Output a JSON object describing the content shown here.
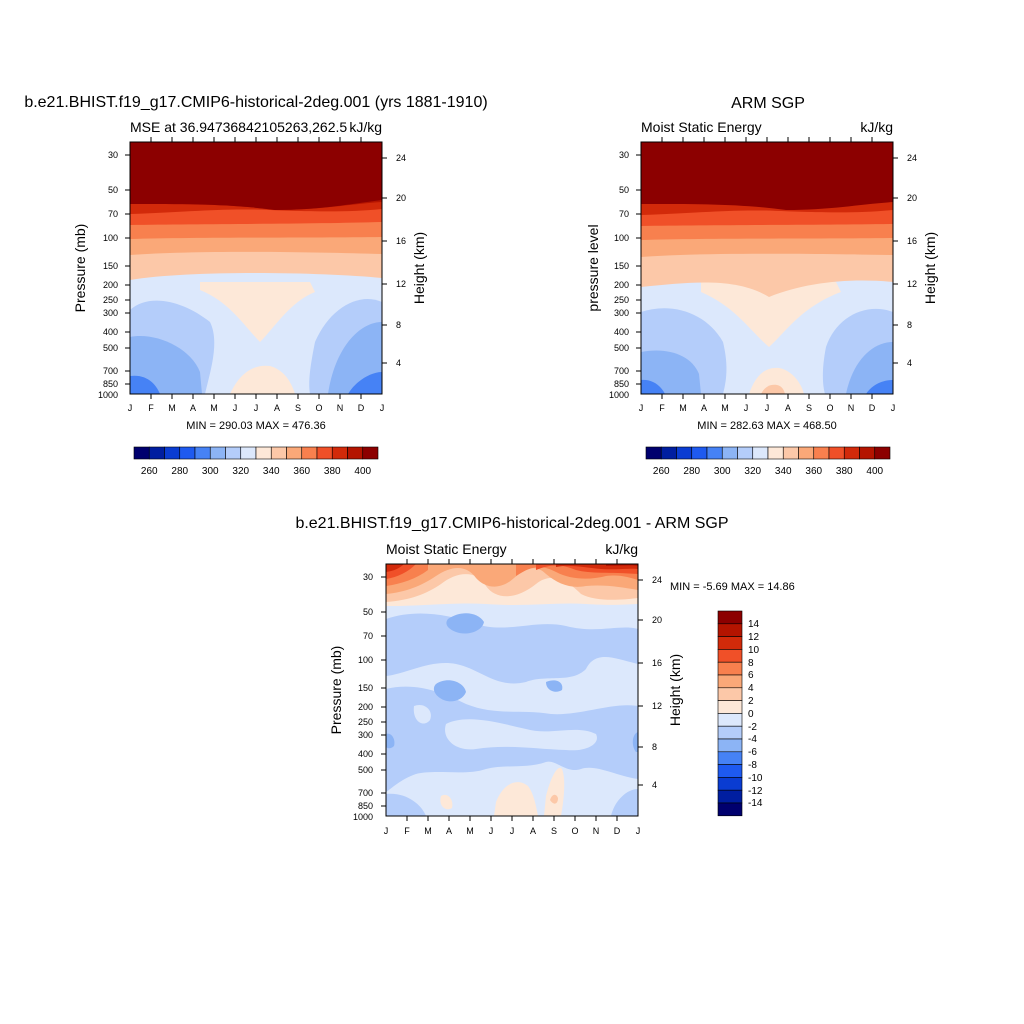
{
  "figure": {
    "colors": [
      "#00006e",
      "#001ea0",
      "#0a3cd2",
      "#1e5af0",
      "#4682f5",
      "#8cb4f5",
      "#b4cdfa",
      "#dce8fc",
      "#fde8d8",
      "#fcc8a8",
      "#faa878",
      "#f8804e",
      "#f05028",
      "#d22a0a",
      "#b41400",
      "#8c0000"
    ]
  },
  "chart_data": [
    {
      "type": "heatmap",
      "title": "b.e21.BHIST.f19_g17.CMIP6-historical-2deg.001 (yrs 1881-1910)",
      "left_string": "MSE at 36.94736842105263,262.5",
      "right_string": "kJ/kg",
      "ylabel": "Pressure (mb)",
      "ylabel_right": "Height (km)",
      "x_ticks": [
        "J",
        "F",
        "M",
        "A",
        "M",
        "J",
        "J",
        "A",
        "S",
        "O",
        "N",
        "D",
        "J"
      ],
      "y_ticks": [
        "30",
        "50",
        "70",
        "100",
        "150",
        "200",
        "250",
        "300",
        "400",
        "500",
        "700",
        "850",
        "1000"
      ],
      "y_ticks_right": [
        "24",
        "20",
        "16",
        "12",
        "8",
        "4"
      ],
      "ylim": [
        1000,
        20
      ],
      "minmax": "MIN = 290.03 MAX = 476.36",
      "colorbar": {
        "orientation": "horizontal",
        "levels": [
          250,
          260,
          270,
          280,
          290,
          300,
          310,
          320,
          330,
          340,
          350,
          360,
          370,
          380,
          390,
          400,
          410
        ],
        "labels": [
          "260",
          "280",
          "300",
          "320",
          "340",
          "360",
          "380",
          "400"
        ]
      }
    },
    {
      "type": "heatmap",
      "title": "ARM SGP",
      "left_string": "Moist Static Energy",
      "right_string": "kJ/kg",
      "ylabel": "pressure level",
      "ylabel_right": "Height (km)",
      "x_ticks": [
        "J",
        "F",
        "M",
        "A",
        "M",
        "J",
        "J",
        "A",
        "S",
        "O",
        "N",
        "D",
        "J"
      ],
      "y_ticks": [
        "30",
        "50",
        "70",
        "100",
        "150",
        "200",
        "250",
        "300",
        "400",
        "500",
        "700",
        "850",
        "1000"
      ],
      "y_ticks_right": [
        "24",
        "20",
        "16",
        "12",
        "8",
        "4"
      ],
      "ylim": [
        1000,
        20
      ],
      "minmax": "MIN = 282.63 MAX = 468.50",
      "colorbar": {
        "orientation": "horizontal",
        "levels": [
          250,
          260,
          270,
          280,
          290,
          300,
          310,
          320,
          330,
          340,
          350,
          360,
          370,
          380,
          390,
          400,
          410
        ],
        "labels": [
          "260",
          "280",
          "300",
          "320",
          "340",
          "360",
          "380",
          "400"
        ]
      }
    },
    {
      "type": "heatmap",
      "title": "b.e21.BHIST.f19_g17.CMIP6-historical-2deg.001 - ARM SGP",
      "left_string": "Moist Static Energy",
      "right_string": "kJ/kg",
      "ylabel": "Pressure (mb)",
      "ylabel_right": "Height (km)",
      "x_ticks": [
        "J",
        "F",
        "M",
        "A",
        "M",
        "J",
        "J",
        "A",
        "S",
        "O",
        "N",
        "D",
        "J"
      ],
      "y_ticks": [
        "30",
        "50",
        "70",
        "100",
        "150",
        "200",
        "250",
        "300",
        "400",
        "500",
        "700",
        "850",
        "1000"
      ],
      "y_ticks_right": [
        "24",
        "20",
        "16",
        "12",
        "8",
        "4"
      ],
      "ylim": [
        1000,
        20
      ],
      "minmax": "MIN =  -5.69 MAX =  14.86",
      "colorbar": {
        "orientation": "vertical",
        "levels": [
          -16,
          -14,
          -12,
          -10,
          -8,
          -6,
          -4,
          -2,
          0,
          2,
          4,
          6,
          8,
          10,
          12,
          14,
          16
        ],
        "labels": [
          "14",
          "12",
          "10",
          "8",
          "6",
          "4",
          "2",
          "0",
          "-2",
          "-4",
          "-6",
          "-8",
          "-10",
          "-12",
          "-14"
        ]
      }
    }
  ]
}
